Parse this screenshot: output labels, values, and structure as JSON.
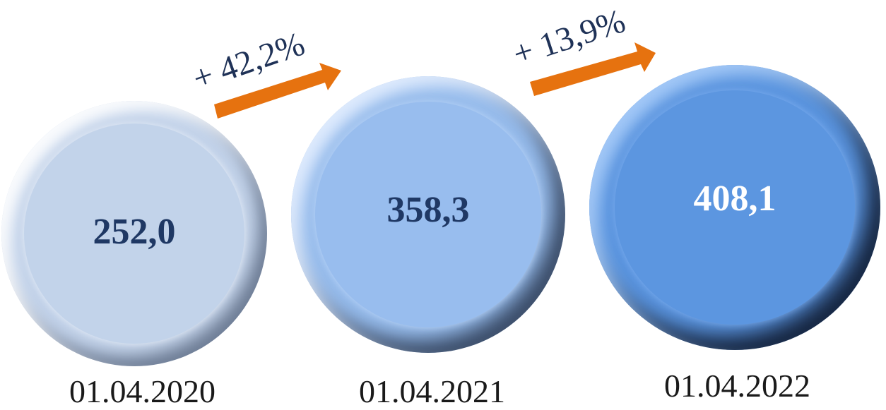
{
  "chart_data": {
    "type": "bubble",
    "categories": [
      "01.04.2020",
      "01.04.2021",
      "01.04.2022"
    ],
    "values": [
      252.0,
      358.3,
      408.1
    ],
    "value_labels": [
      "252,0",
      "358,3",
      "408,1"
    ],
    "growth": [
      {
        "from": "01.04.2020",
        "to": "01.04.2021",
        "label": "+ 42,2%"
      },
      {
        "from": "01.04.2021",
        "to": "01.04.2022",
        "label": "+ 13,9%"
      }
    ]
  },
  "colors": {
    "bubble_1": "#c3d3ea",
    "bubble_2": "#97bcec",
    "bubble_3": "#5b95df",
    "value_dark": "#1f3864",
    "value_light": "#ffffff",
    "arrow": "#e6720f"
  }
}
